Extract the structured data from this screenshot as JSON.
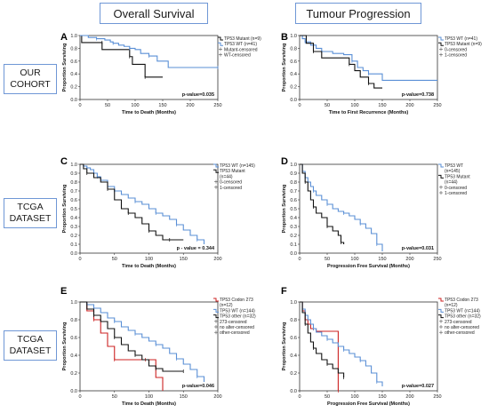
{
  "headers": {
    "overall_survival": "Overall Survival",
    "tumour_progression": "Tumour Progression"
  },
  "row_labels": [
    {
      "line1": "OUR",
      "line2": "COHORT"
    },
    {
      "line1": "TCGA",
      "line2": "DATASET"
    },
    {
      "line1": "TCGA",
      "line2": "DATASET"
    }
  ],
  "colors": {
    "black": "#111111",
    "blue": "#5a8fd6",
    "red": "#cc2222",
    "frame": "#6f97d6"
  },
  "chart_data": [
    {
      "id": "A",
      "type": "line",
      "letter": "A",
      "xlabel": "Time to Death (Months)",
      "ylabel": "Proportion Surviving",
      "xlim": [
        0,
        250
      ],
      "ylim": [
        0,
        1.0
      ],
      "xticks": [
        0,
        50,
        100,
        150,
        200,
        250
      ],
      "yticks": [
        0.0,
        0.2,
        0.4,
        0.6,
        0.8,
        1.0
      ],
      "pvalue": "p-value=0.035",
      "legend": [
        "TP53 Mutant (n=9)",
        "TP53 WT (n=41)",
        "Mutant-censored",
        "WT-censored"
      ],
      "series": [
        {
          "color": "black",
          "x": [
            0,
            3,
            40,
            40,
            75,
            90,
            95,
            100,
            118,
            118,
            150
          ],
          "y": [
            1.0,
            0.89,
            0.89,
            0.78,
            0.78,
            0.67,
            0.55,
            0.55,
            0.35,
            0.35,
            0.35
          ]
        },
        {
          "color": "blue",
          "x": [
            0,
            15,
            30,
            45,
            55,
            60,
            70,
            80,
            90,
            100,
            110,
            125,
            140,
            160,
            250
          ],
          "y": [
            1.0,
            0.97,
            0.95,
            0.93,
            0.9,
            0.88,
            0.85,
            0.83,
            0.8,
            0.78,
            0.72,
            0.68,
            0.6,
            0.5,
            0.5
          ]
        }
      ]
    },
    {
      "id": "B",
      "type": "line",
      "letter": "B",
      "xlabel": "Time to First Recurrence (Months)",
      "ylabel": "Proportion Surviving",
      "xlim": [
        0,
        250
      ],
      "ylim": [
        0,
        1.0
      ],
      "xticks": [
        0,
        50,
        100,
        150,
        200,
        250
      ],
      "yticks": [
        0.0,
        0.2,
        0.4,
        0.6,
        0.8,
        1.0
      ],
      "pvalue": "p-value=0.738",
      "legend": [
        "TP53 WT (n=41)",
        "TP53 Mutant (n=9)",
        "0-censored",
        "1-censored"
      ],
      "series": [
        {
          "color": "blue",
          "x": [
            0,
            5,
            10,
            20,
            30,
            40,
            60,
            80,
            95,
            105,
            115,
            125,
            150,
            250
          ],
          "y": [
            1.0,
            0.95,
            0.9,
            0.85,
            0.8,
            0.75,
            0.72,
            0.7,
            0.6,
            0.5,
            0.45,
            0.4,
            0.3,
            0.3
          ]
        },
        {
          "color": "black",
          "x": [
            0,
            12,
            25,
            40,
            50,
            90,
            100,
            110,
            125,
            135,
            150
          ],
          "y": [
            1.0,
            0.88,
            0.75,
            0.65,
            0.65,
            0.55,
            0.45,
            0.35,
            0.25,
            0.18,
            0.18
          ]
        }
      ]
    },
    {
      "id": "C",
      "type": "line",
      "letter": "C",
      "xlabel": "Time to Death (Months)",
      "ylabel": "Proportion Surviving",
      "xlim": [
        0,
        200
      ],
      "ylim": [
        0,
        1.0
      ],
      "xticks": [
        0,
        50,
        100,
        150,
        200
      ],
      "yticks": [
        0.0,
        0.1,
        0.2,
        0.3,
        0.4,
        0.5,
        0.6,
        0.7,
        0.8,
        0.9,
        1.0
      ],
      "pvalue": "p - value = 0.344",
      "legend": [
        "TP53 WT (n=145)",
        "TP53 Mutant",
        "(n=44)",
        "0-censored",
        "1-censored"
      ],
      "series": [
        {
          "color": "blue",
          "x": [
            0,
            5,
            10,
            15,
            20,
            25,
            30,
            40,
            50,
            60,
            70,
            80,
            90,
            100,
            110,
            120,
            130,
            140,
            150,
            160,
            170,
            180
          ],
          "y": [
            1.0,
            0.98,
            0.96,
            0.94,
            0.9,
            0.86,
            0.82,
            0.75,
            0.7,
            0.66,
            0.62,
            0.58,
            0.55,
            0.5,
            0.45,
            0.42,
            0.38,
            0.32,
            0.26,
            0.2,
            0.15,
            0.1
          ]
        },
        {
          "color": "black",
          "x": [
            0,
            5,
            10,
            20,
            30,
            40,
            50,
            60,
            70,
            80,
            90,
            100,
            110,
            120,
            130,
            150
          ],
          "y": [
            1.0,
            0.95,
            0.9,
            0.85,
            0.8,
            0.72,
            0.6,
            0.5,
            0.45,
            0.4,
            0.33,
            0.25,
            0.2,
            0.15,
            0.15,
            0.15
          ]
        }
      ]
    },
    {
      "id": "D",
      "type": "line",
      "letter": "D",
      "xlabel": "Progression Free Survival (Months)",
      "ylabel": "Proportion Surviving",
      "xlim": [
        0,
        250
      ],
      "ylim": [
        0,
        1.0
      ],
      "xticks": [
        0,
        50,
        100,
        150,
        200,
        250
      ],
      "yticks": [
        0.0,
        0.1,
        0.2,
        0.3,
        0.4,
        0.5,
        0.6,
        0.7,
        0.8,
        0.9,
        1.0
      ],
      "pvalue": "p-value=0.031",
      "legend": [
        "TP53 WT",
        "(n=145)",
        "TP53 Mutant",
        "(n=44)",
        "0-censored",
        "1-censored"
      ],
      "series": [
        {
          "color": "blue",
          "x": [
            0,
            5,
            10,
            15,
            20,
            25,
            30,
            40,
            50,
            60,
            70,
            80,
            90,
            100,
            110,
            120,
            130,
            140,
            150
          ],
          "y": [
            1.0,
            0.92,
            0.85,
            0.8,
            0.75,
            0.7,
            0.65,
            0.6,
            0.55,
            0.5,
            0.47,
            0.45,
            0.42,
            0.38,
            0.33,
            0.28,
            0.22,
            0.1,
            0.02
          ]
        },
        {
          "color": "black",
          "x": [
            0,
            5,
            10,
            15,
            20,
            25,
            30,
            40,
            50,
            60,
            70,
            75,
            80
          ],
          "y": [
            1.0,
            0.9,
            0.8,
            0.7,
            0.6,
            0.52,
            0.45,
            0.4,
            0.3,
            0.25,
            0.2,
            0.12,
            0.1
          ]
        }
      ]
    },
    {
      "id": "E",
      "type": "line",
      "letter": "E",
      "xlabel": "Time to Death (Months)",
      "ylabel": "Proportion Surviving",
      "xlim": [
        0,
        200
      ],
      "ylim": [
        0,
        1.0
      ],
      "xticks": [
        0,
        50,
        100,
        150,
        200
      ],
      "yticks": [
        0.0,
        0.2,
        0.4,
        0.6,
        0.8,
        1.0
      ],
      "pvalue": "p-value=0.046",
      "legend": [
        "TP53 Codon 273",
        "(n=12)",
        "TP53 WT (n=144)",
        "TP53 other (n=32)",
        "273-censored",
        "no alter-censored",
        "other-censored"
      ],
      "series": [
        {
          "color": "red",
          "x": [
            0,
            10,
            20,
            30,
            40,
            50,
            60,
            80,
            95,
            110,
            120
          ],
          "y": [
            1.0,
            0.9,
            0.8,
            0.65,
            0.5,
            0.35,
            0.35,
            0.35,
            0.35,
            0.15,
            0.0
          ]
        },
        {
          "color": "blue",
          "x": [
            0,
            10,
            20,
            30,
            40,
            50,
            60,
            70,
            80,
            90,
            100,
            110,
            120,
            130,
            140,
            150,
            160,
            170,
            180
          ],
          "y": [
            1.0,
            0.97,
            0.93,
            0.88,
            0.82,
            0.78,
            0.72,
            0.68,
            0.64,
            0.6,
            0.56,
            0.52,
            0.48,
            0.42,
            0.36,
            0.3,
            0.24,
            0.16,
            0.1
          ]
        },
        {
          "color": "black",
          "x": [
            0,
            10,
            20,
            30,
            40,
            50,
            60,
            70,
            80,
            90,
            100,
            110,
            120,
            130,
            150
          ],
          "y": [
            1.0,
            0.92,
            0.85,
            0.78,
            0.7,
            0.6,
            0.52,
            0.45,
            0.4,
            0.35,
            0.28,
            0.25,
            0.22,
            0.22,
            0.22
          ]
        }
      ]
    },
    {
      "id": "F",
      "type": "line",
      "letter": "F",
      "xlabel": "Progression Free Survival (Months)",
      "ylabel": "Proportion Surviving",
      "xlim": [
        0,
        250
      ],
      "ylim": [
        0,
        1.0
      ],
      "xticks": [
        0,
        50,
        100,
        150,
        200,
        250
      ],
      "yticks": [
        0.0,
        0.2,
        0.4,
        0.6,
        0.8,
        1.0
      ],
      "pvalue": "p-value=0.027",
      "legend": [
        "TP53 Codon 273",
        "(n=12)",
        "TP53 WT (n=144)",
        "TP53 other (n=32)",
        "273-censored",
        "no alter-censored",
        "other-censored"
      ],
      "series": [
        {
          "color": "red",
          "x": [
            0,
            5,
            10,
            15,
            20,
            25,
            30,
            70,
            70
          ],
          "y": [
            1.0,
            0.9,
            0.8,
            0.75,
            0.7,
            0.7,
            0.67,
            0.67,
            0.0
          ]
        },
        {
          "color": "blue",
          "x": [
            0,
            5,
            10,
            15,
            20,
            25,
            30,
            40,
            50,
            60,
            70,
            80,
            90,
            100,
            110,
            120,
            130,
            140,
            150
          ],
          "y": [
            1.0,
            0.92,
            0.85,
            0.8,
            0.75,
            0.7,
            0.66,
            0.62,
            0.58,
            0.54,
            0.5,
            0.46,
            0.42,
            0.38,
            0.34,
            0.28,
            0.2,
            0.1,
            0.05
          ]
        },
        {
          "color": "black",
          "x": [
            0,
            5,
            10,
            15,
            20,
            25,
            30,
            40,
            50,
            60,
            70,
            80
          ],
          "y": [
            1.0,
            0.88,
            0.75,
            0.65,
            0.55,
            0.48,
            0.42,
            0.35,
            0.3,
            0.25,
            0.2,
            0.15
          ]
        }
      ]
    }
  ]
}
